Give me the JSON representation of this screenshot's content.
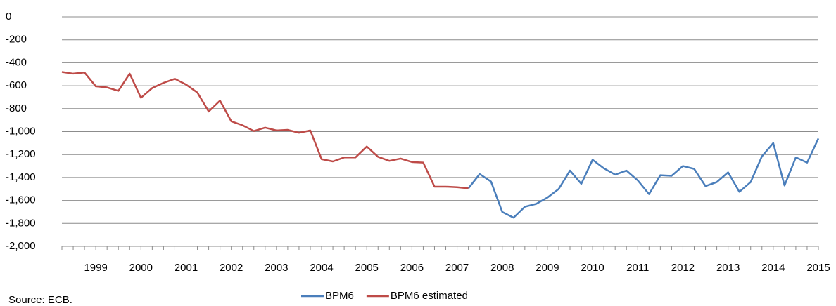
{
  "chart_data": {
    "type": "line",
    "categories": [
      null,
      null,
      null,
      "1999",
      null,
      null,
      null,
      "2000",
      null,
      null,
      null,
      "2001",
      null,
      null,
      null,
      "2002",
      null,
      null,
      null,
      "2003",
      null,
      null,
      null,
      "2004",
      null,
      null,
      null,
      "2005",
      null,
      null,
      null,
      "2006",
      null,
      null,
      null,
      "2007",
      null,
      null,
      null,
      "2008",
      null,
      null,
      null,
      "2009",
      null,
      null,
      null,
      "2010",
      null,
      null,
      null,
      "2011",
      null,
      null,
      null,
      "2012",
      null,
      null,
      null,
      "2013",
      null,
      null,
      null,
      "2014",
      null,
      null,
      null,
      "2015"
    ],
    "series": [
      {
        "name": "BPM6",
        "color": "#4a7ebb",
        "values": [
          null,
          null,
          null,
          null,
          null,
          null,
          null,
          null,
          null,
          null,
          null,
          null,
          null,
          null,
          null,
          null,
          null,
          null,
          null,
          null,
          null,
          null,
          null,
          null,
          null,
          null,
          null,
          null,
          null,
          null,
          null,
          null,
          null,
          null,
          null,
          null,
          -1495,
          -1370,
          -1435,
          -1700,
          -1750,
          -1655,
          -1630,
          -1575,
          -1500,
          -1340,
          -1455,
          -1245,
          -1320,
          -1375,
          -1340,
          -1425,
          -1545,
          -1380,
          -1385,
          -1300,
          -1325,
          -1475,
          -1440,
          -1355,
          -1525,
          -1440,
          -1215,
          -1100,
          -1470,
          -1225,
          -1270,
          -1060
        ]
      },
      {
        "name": "BPM6 estimated",
        "color": "#be4b48",
        "values": [
          -480,
          -495,
          -485,
          -605,
          -615,
          -645,
          -495,
          -705,
          -620,
          -575,
          -540,
          -590,
          -660,
          -825,
          -730,
          -910,
          -945,
          -995,
          -965,
          -990,
          -985,
          -1010,
          -990,
          -1240,
          -1260,
          -1225,
          -1225,
          -1130,
          -1220,
          -1255,
          -1235,
          -1265,
          -1270,
          -1480,
          -1480,
          -1485,
          -1495,
          null,
          null,
          null,
          null,
          null,
          null,
          null,
          null,
          null,
          null,
          null,
          null,
          null,
          null,
          null,
          null,
          null,
          null,
          null,
          null,
          null,
          null,
          null,
          null,
          null,
          null,
          null,
          null,
          null,
          null,
          null
        ]
      }
    ],
    "ylim": [
      -2000,
      0
    ],
    "yticks": [
      -2000,
      -1800,
      -1600,
      -1400,
      -1200,
      -1000,
      -800,
      -600,
      -400,
      -200,
      0
    ],
    "grid": true,
    "legend": "bottom",
    "source": "Source: ECB."
  }
}
